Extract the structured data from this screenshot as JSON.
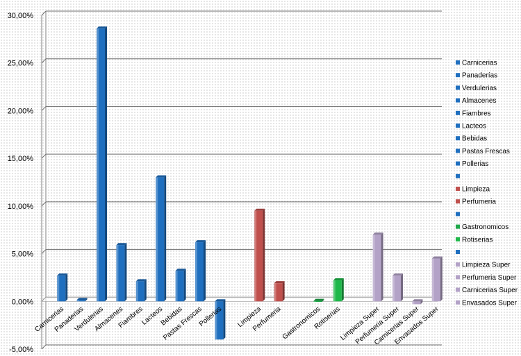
{
  "chart_data": {
    "type": "bar",
    "title": "",
    "xlabel": "",
    "ylabel": "",
    "ylim": [
      -0.05,
      0.3
    ],
    "yticks": [
      -0.05,
      0,
      0.05,
      0.1,
      0.15,
      0.2,
      0.25,
      0.3
    ],
    "ytick_labels": [
      "-5,00%",
      "0,00%",
      "5,00%",
      "10,00%",
      "15,00%",
      "20,00%",
      "25,00%",
      "30,00%"
    ],
    "grid": true,
    "legend_position": "right",
    "series": [
      {
        "name": "Carnicerias",
        "color": "#1f6fbf",
        "category": "Carnicerias",
        "value": 0.027
      },
      {
        "name": "Panaderías",
        "color": "#1f6fbf",
        "category": "Panaderias",
        "value": 0.0015
      },
      {
        "name": "Verdulerias",
        "color": "#1f6fbf",
        "category": "Verdulerias",
        "value": 0.286
      },
      {
        "name": "Almacenes",
        "color": "#1f6fbf",
        "category": "Almacenes",
        "value": 0.059
      },
      {
        "name": "Fiambres",
        "color": "#1f6fbf",
        "category": "Fiambres",
        "value": 0.021
      },
      {
        "name": "Lacteos",
        "color": "#1f6fbf",
        "category": "Lacteos",
        "value": 0.13
      },
      {
        "name": "Bebidas",
        "color": "#1f6fbf",
        "category": "Bebidas",
        "value": 0.032
      },
      {
        "name": "Pastas Frescas",
        "color": "#1f6fbf",
        "category": "Pastas Frescas",
        "value": 0.062
      },
      {
        "name": "Pollerias",
        "color": "#1f6fbf",
        "category": "Pollerias",
        "value": -0.04
      },
      {
        "name": "",
        "color": "#1f6fbf",
        "category": "",
        "value": null
      },
      {
        "name": "Limpieza",
        "color": "#c0504d",
        "category": "Limpieza",
        "value": 0.095
      },
      {
        "name": "Perfumeria",
        "color": "#c0504d",
        "category": "Perfumeria",
        "value": 0.019
      },
      {
        "name": "",
        "color": "#1f6fbf",
        "category": "",
        "value": null
      },
      {
        "name": "Gastronomicos",
        "color": "#1fa84a",
        "category": "Gastronomicos",
        "value": 0.0005
      },
      {
        "name": "Rotiserias",
        "color": "#1fb84a",
        "category": "Rotiserias",
        "value": 0.022
      },
      {
        "name": "",
        "color": "#1f6fbf",
        "category": "",
        "value": null
      },
      {
        "name": "Limpieza Super",
        "color": "#b3a2c7",
        "category": "Limpieza Super",
        "value": 0.07
      },
      {
        "name": "Perfumeria Super",
        "color": "#b3a2c7",
        "category": "Perfumeria Super",
        "value": 0.027
      },
      {
        "name": "Carnicerias Super",
        "color": "#b3a2c7",
        "category": "Carnicerias Super",
        "value": -0.003
      },
      {
        "name": "Envasados Super",
        "color": "#b3a2c7",
        "category": "Envasados Super",
        "value": 0.045
      }
    ]
  }
}
